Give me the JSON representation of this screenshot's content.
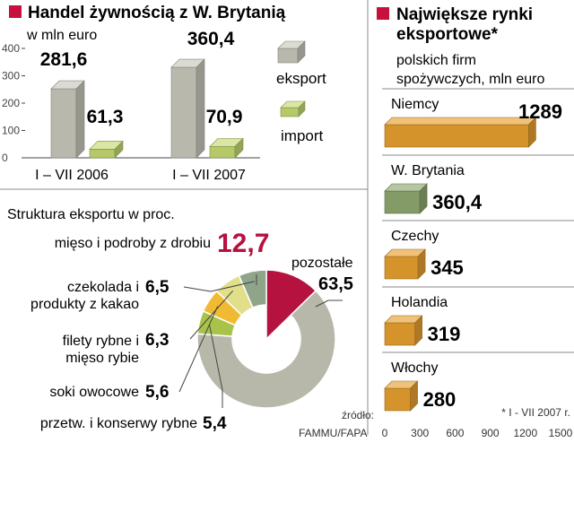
{
  "chart_data": [
    {
      "type": "bar",
      "title": "Handel żywnością z W. Brytanią",
      "ylabel": "w mln euro",
      "ylim": [
        0,
        400
      ],
      "yticks": [
        "0",
        "100",
        "200",
        "300",
        "400"
      ],
      "categories": [
        "I – VII 2006",
        "I – VII 2007"
      ],
      "series": [
        {
          "name": "eksport",
          "values": [
            281.6,
            360.4
          ],
          "labels": [
            "281,6",
            "360,4"
          ],
          "color": "#c9c8bc"
        },
        {
          "name": "import",
          "values": [
            61.3,
            70.9
          ],
          "labels": [
            "61,3",
            "70,9"
          ],
          "color": "#c5da72"
        }
      ],
      "legend": [
        "eksport",
        "import"
      ]
    },
    {
      "type": "pie",
      "title": "Struktura eksportu w  proc.",
      "slices": [
        {
          "label": "mięso i podroby z drobiu",
          "value": 12.7,
          "value_label": "12,7",
          "color": "#b5123f"
        },
        {
          "label": "pozostałe",
          "value": 63.5,
          "value_label": "63,5",
          "color": "#b8b8aa"
        },
        {
          "label": "przetw. i konserwy rybne",
          "value": 5.4,
          "value_label": "5,4",
          "color": "#a9c34a"
        },
        {
          "label": "soki owocowe",
          "value": 5.6,
          "value_label": "5,6",
          "color": "#f0bb33"
        },
        {
          "label": "filety rybne i mięso rybie",
          "value": 6.3,
          "value_label": "6,3",
          "color": "#e2df8a"
        },
        {
          "label": "czekolada i produkty z kakao",
          "value": 6.5,
          "value_label": "6,5",
          "color": "#8fa58a"
        }
      ],
      "label_lines": {
        "pozostale": [
          "pozostałe"
        ],
        "czekolada": [
          "czekolada i",
          "produkty z kakao"
        ],
        "filety": [
          "filety rybne i",
          "mięso rybie"
        ]
      }
    },
    {
      "type": "bar",
      "orientation": "horizontal",
      "title_lines": [
        "Największe rynki",
        "eksportowe*"
      ],
      "subtitle_lines": [
        "polskich firm",
        "spożywczych, mln euro"
      ],
      "categories": [
        "Niemcy",
        "W. Brytania",
        "Czechy",
        "Holandia",
        "Włochy"
      ],
      "values": [
        1289,
        360.4,
        345,
        319,
        280
      ],
      "value_labels": [
        "1289",
        "360,4",
        "345",
        "319",
        "280"
      ],
      "colors": [
        "#e8a030",
        "#8fa870",
        "#e8a030",
        "#e8a030",
        "#e8a030"
      ],
      "xlim": [
        0,
        1500
      ],
      "xticks": [
        "0",
        "300",
        "600",
        "900",
        "1200",
        "1500"
      ],
      "footnote": "* I - VII 2007 r."
    }
  ],
  "title_marker_color": "#c8103c",
  "source": {
    "label": "źródło:",
    "text": "FAMMU/FAPA"
  }
}
